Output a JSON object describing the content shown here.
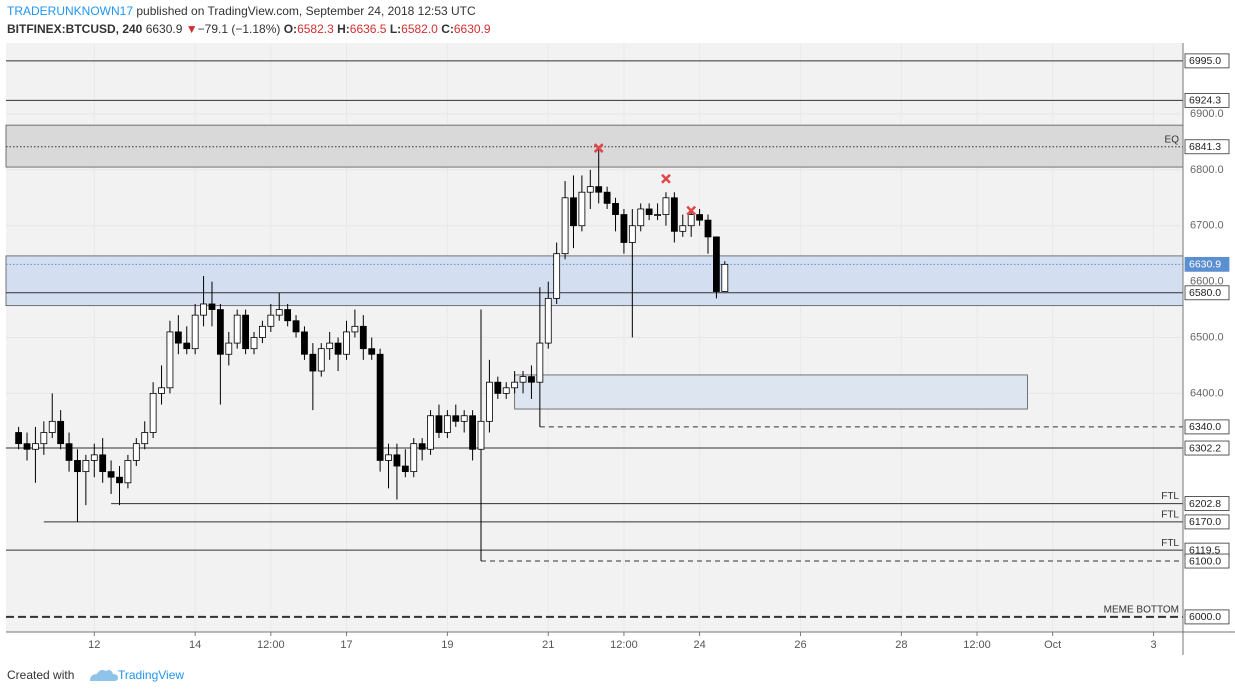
{
  "chart_data": {
    "type": "candlestick",
    "header": {
      "author": "TRADERUNKNOWN17",
      "published": " published on TradingView.com, September 24, 2018 12:53 UTC",
      "symbol": "BITFINEX:BTCUSD, 240",
      "last": "6630.9",
      "change_arrow": "▼",
      "change": "−79.1 (−1.18%)",
      "o_label": "O:",
      "o_value": "6582.3",
      "h_label": "H:",
      "h_value": "6636.5",
      "l_label": "L:",
      "l_value": "6582.0",
      "c_label": "C:",
      "c_value": "6630.9"
    },
    "footer": {
      "created": "Created with",
      "brand": "TradingView"
    },
    "x": [
      "2018-09-10 12:00",
      "2018-09-10 16:00",
      "2018-09-10 20:00",
      "2018-09-11 00:00",
      "2018-09-11 04:00",
      "2018-09-11 08:00",
      "2018-09-11 12:00",
      "2018-09-11 16:00",
      "2018-09-11 20:00",
      "2018-09-12 00:00",
      "2018-09-12 04:00",
      "2018-09-12 08:00",
      "2018-09-12 12:00",
      "2018-09-12 16:00",
      "2018-09-12 20:00",
      "2018-09-13 00:00",
      "2018-09-13 04:00",
      "2018-09-13 08:00",
      "2018-09-13 12:00",
      "2018-09-13 16:00",
      "2018-09-13 20:00",
      "2018-09-14 00:00",
      "2018-09-14 04:00",
      "2018-09-14 08:00",
      "2018-09-14 12:00",
      "2018-09-14 16:00",
      "2018-09-14 20:00",
      "2018-09-15 00:00",
      "2018-09-15 04:00",
      "2018-09-15 08:00",
      "2018-09-15 12:00",
      "2018-09-15 16:00",
      "2018-09-15 20:00",
      "2018-09-16 00:00",
      "2018-09-16 04:00",
      "2018-09-16 08:00",
      "2018-09-16 12:00",
      "2018-09-16 16:00",
      "2018-09-16 20:00",
      "2018-09-17 00:00",
      "2018-09-17 04:00",
      "2018-09-17 08:00",
      "2018-09-17 12:00",
      "2018-09-17 16:00",
      "2018-09-17 20:00",
      "2018-09-18 00:00",
      "2018-09-18 04:00",
      "2018-09-18 08:00",
      "2018-09-18 12:00",
      "2018-09-18 16:00",
      "2018-09-18 20:00",
      "2018-09-19 00:00",
      "2018-09-19 04:00",
      "2018-09-19 08:00",
      "2018-09-19 12:00",
      "2018-09-19 16:00",
      "2018-09-19 20:00",
      "2018-09-20 00:00",
      "2018-09-20 04:00",
      "2018-09-20 08:00",
      "2018-09-20 12:00",
      "2018-09-20 16:00",
      "2018-09-20 20:00",
      "2018-09-21 00:00",
      "2018-09-21 04:00",
      "2018-09-21 08:00",
      "2018-09-21 12:00",
      "2018-09-21 16:00",
      "2018-09-21 20:00",
      "2018-09-22 00:00",
      "2018-09-22 04:00",
      "2018-09-22 08:00",
      "2018-09-22 12:00",
      "2018-09-22 16:00",
      "2018-09-22 20:00",
      "2018-09-23 00:00",
      "2018-09-23 04:00",
      "2018-09-23 08:00",
      "2018-09-23 12:00",
      "2018-09-23 16:00",
      "2018-09-23 20:00",
      "2018-09-24 00:00",
      "2018-09-24 04:00",
      "2018-09-24 08:00",
      "2018-09-24 12:00"
    ],
    "open": [
      6330,
      6310,
      6300,
      6310,
      6330,
      6350,
      6310,
      6280,
      6260,
      6280,
      6290,
      6260,
      6250,
      6240,
      6280,
      6310,
      6330,
      6400,
      6410,
      6510,
      6490,
      6480,
      6540,
      6560,
      6550,
      6470,
      6490,
      6540,
      6480,
      6500,
      6520,
      6540,
      6550,
      6530,
      6510,
      6470,
      6440,
      6480,
      6490,
      6470,
      6510,
      6520,
      6480,
      6470,
      6280,
      6290,
      6270,
      6260,
      6310,
      6300,
      6360,
      6330,
      6360,
      6350,
      6360,
      6300,
      6350,
      6420,
      6400,
      6410,
      6420,
      6430,
      6420,
      6490,
      6570,
      6650,
      6750,
      6700,
      6760,
      6770,
      6760,
      6740,
      6720,
      6670,
      6700,
      6730,
      6720,
      6720,
      6750,
      6690,
      6700,
      6720,
      6710,
      6680,
      6582.3
    ],
    "high": [
      6340,
      6330,
      6340,
      6350,
      6400,
      6370,
      6330,
      6300,
      6290,
      6310,
      6320,
      6280,
      6270,
      6290,
      6320,
      6350,
      6420,
      6450,
      6530,
      6540,
      6520,
      6560,
      6610,
      6600,
      6560,
      6510,
      6550,
      6550,
      6510,
      6530,
      6560,
      6580,
      6560,
      6540,
      6520,
      6490,
      6490,
      6510,
      6500,
      6530,
      6550,
      6540,
      6500,
      6480,
      6310,
      6310,
      6300,
      6320,
      6320,
      6370,
      6380,
      6370,
      6380,
      6370,
      6370,
      6550,
      6460,
      6430,
      6420,
      6440,
      6440,
      6450,
      6590,
      6600,
      6670,
      6780,
      6790,
      6790,
      6800,
      6841,
      6770,
      6750,
      6730,
      6730,
      6740,
      6740,
      6740,
      6760,
      6760,
      6720,
      6730,
      6730,
      6720,
      6680,
      6636.5
    ],
    "low": [
      6300,
      6280,
      6240,
      6290,
      6320,
      6300,
      6260,
      6170,
      6200,
      6250,
      6240,
      6220,
      6200,
      6230,
      6270,
      6300,
      6320,
      6380,
      6400,
      6470,
      6470,
      6470,
      6520,
      6520,
      6380,
      6450,
      6480,
      6470,
      6470,
      6490,
      6510,
      6530,
      6520,
      6500,
      6460,
      6370,
      6430,
      6460,
      6440,
      6460,
      6500,
      6460,
      6460,
      6260,
      6230,
      6210,
      6250,
      6250,
      6280,
      6290,
      6320,
      6320,
      6340,
      6330,
      6280,
      6100,
      6330,
      6390,
      6390,
      6400,
      6400,
      6390,
      6340,
      6480,
      6560,
      6640,
      6660,
      6690,
      6730,
      6740,
      6730,
      6690,
      6650,
      6500,
      6690,
      6710,
      6710,
      6700,
      6670,
      6680,
      6680,
      6700,
      6650,
      6570,
      6582
    ],
    "close": [
      6310,
      6300,
      6310,
      6330,
      6350,
      6310,
      6280,
      6260,
      6280,
      6290,
      6260,
      6250,
      6240,
      6280,
      6310,
      6330,
      6400,
      6410,
      6510,
      6490,
      6480,
      6540,
      6560,
      6550,
      6470,
      6490,
      6540,
      6480,
      6500,
      6520,
      6540,
      6550,
      6530,
      6510,
      6470,
      6440,
      6480,
      6490,
      6470,
      6510,
      6520,
      6480,
      6470,
      6280,
      6290,
      6270,
      6260,
      6310,
      6300,
      6360,
      6330,
      6360,
      6350,
      6360,
      6300,
      6350,
      6420,
      6400,
      6410,
      6420,
      6430,
      6420,
      6490,
      6570,
      6650,
      6750,
      6700,
      6760,
      6770,
      6760,
      6740,
      6720,
      6670,
      6700,
      6730,
      6720,
      6720,
      6750,
      6690,
      6700,
      6720,
      6710,
      6680,
      6582.3,
      6630.9
    ],
    "up_color": "#ffffff",
    "down_color": "#000000",
    "xlim": [
      "2018-09-10 06:00",
      "2018-10-03 14:00"
    ],
    "xticks": [
      {
        "value": "2018-09-12 00:00",
        "label": "12"
      },
      {
        "value": "2018-09-14 00:00",
        "label": "14"
      },
      {
        "value": "2018-09-15 12:00",
        "label": "12:00"
      },
      {
        "value": "2018-09-17 00:00",
        "label": "17"
      },
      {
        "value": "2018-09-19 00:00",
        "label": "19"
      },
      {
        "value": "2018-09-21 00:00",
        "label": "21"
      },
      {
        "value": "2018-09-22 12:00",
        "label": "12:00"
      },
      {
        "value": "2018-09-24 00:00",
        "label": "24"
      },
      {
        "value": "2018-09-26 00:00",
        "label": "26"
      },
      {
        "value": "2018-09-28 00:00",
        "label": "28"
      },
      {
        "value": "2018-09-29 12:00",
        "label": "12:00"
      },
      {
        "value": "2018-10-01 00:00",
        "label": "Oct"
      },
      {
        "value": "2018-10-03 00:00",
        "label": "3"
      }
    ],
    "ylim": [
      5973,
      7027
    ],
    "yticks": [
      {
        "value": 6400,
        "label": "6400.0"
      },
      {
        "value": 6500,
        "label": "6500.0"
      },
      {
        "value": 6600,
        "label": "6600.0"
      },
      {
        "value": 6700,
        "label": "6700.0"
      },
      {
        "value": 6800,
        "label": "6800.0"
      },
      {
        "value": 6900,
        "label": "6900.0"
      }
    ],
    "grid": true,
    "zones": [
      {
        "low": 6805,
        "high": 6880,
        "color": "#d9d9d9"
      },
      {
        "low": 6557,
        "high": 6646,
        "color": "#d3def0"
      },
      {
        "low": 6372,
        "high": 6433,
        "color": "#dde5f0",
        "start": "2018-09-20 08:00",
        "end": "2018-09-30 12:00"
      }
    ],
    "levels": [
      {
        "value": 6995,
        "label": "6995.0",
        "style": "solid"
      },
      {
        "value": 6924.3,
        "label": "6924.3",
        "style": "solid"
      },
      {
        "value": 6841.3,
        "label": "6841.3",
        "style": "dotted",
        "note": "EQ"
      },
      {
        "value": 6630.9,
        "label": "6630.9",
        "style": "dotted",
        "color": "#5b8fd0",
        "current": true
      },
      {
        "value": 6580,
        "label": "6580.0",
        "style": "solid"
      },
      {
        "value": 6340,
        "label": "6340.0",
        "style": "dashed",
        "start": "2018-09-20 20:00"
      },
      {
        "value": 6302.2,
        "label": "6302.2",
        "style": "solid"
      },
      {
        "value": 6202.8,
        "label": "6202.8",
        "style": "solid",
        "start": "2018-09-12 08:00",
        "note": "FTL"
      },
      {
        "value": 6170,
        "label": "6170.0",
        "style": "solid",
        "start": "2018-09-11 00:00",
        "note": "FTL"
      },
      {
        "value": 6119.5,
        "label": "6119.5",
        "style": "solid",
        "note": "FTL"
      },
      {
        "value": 6100,
        "label": "6100.0",
        "style": "dashed",
        "start": "2018-09-19 16:00"
      },
      {
        "value": 6000,
        "label": "6000.0",
        "style": "bold-dashed",
        "note": "MEME BOTTOM"
      }
    ],
    "markers": [
      {
        "x": "2018-09-22 00:00",
        "y": 6839,
        "color": "#e04848"
      },
      {
        "x": "2018-09-23 08:00",
        "y": 6784,
        "color": "#e04848"
      },
      {
        "x": "2018-09-23 20:00",
        "y": 6727,
        "color": "#e04848"
      }
    ]
  }
}
